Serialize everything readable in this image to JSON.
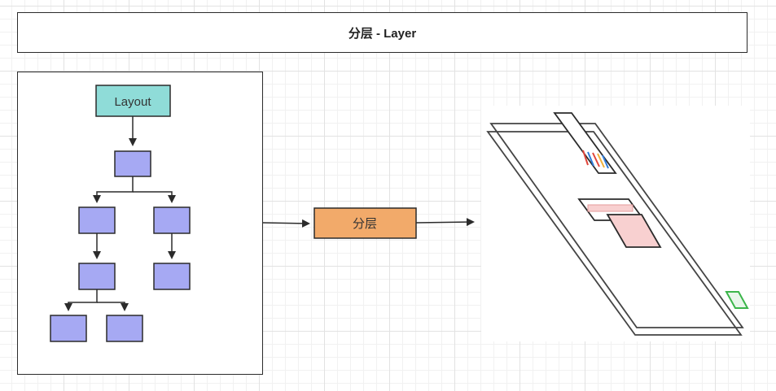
{
  "title": "分层 - Layer",
  "nodes": {
    "layout_label": "Layout",
    "layer_label": "分层"
  },
  "colors": {
    "layout_fill": "#8fdcd8",
    "tree_node_fill": "#a6a9f3",
    "layer_node_fill": "#f2aa6a",
    "stroke": "#2b2b2b",
    "overlay_fill": "#f8d0d0",
    "accent_green": "#3bb54a"
  }
}
